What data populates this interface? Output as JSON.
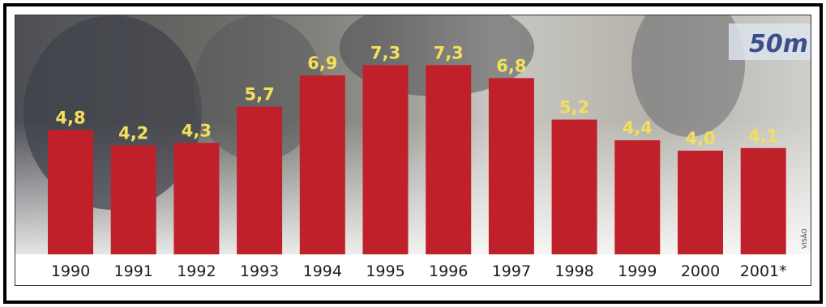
{
  "chart_data": {
    "type": "bar",
    "categories": [
      "1990",
      "1991",
      "1992",
      "1993",
      "1994",
      "1995",
      "1996",
      "1997",
      "1998",
      "1999",
      "2000",
      "2001*"
    ],
    "value_labels": [
      "4,8",
      "4,2",
      "4,3",
      "5,7",
      "6,9",
      "7,3",
      "7,3",
      "6,8",
      "5,2",
      "4,4",
      "4,0",
      "4,1"
    ],
    "values": [
      4.8,
      4.2,
      4.3,
      5.7,
      6.9,
      7.3,
      7.3,
      6.8,
      5.2,
      4.4,
      4.0,
      4.1
    ],
    "title": "",
    "xlabel": "",
    "ylabel": "",
    "ylim": [
      0,
      7.5
    ],
    "grid": false,
    "legend": "none",
    "bar_color": "#c0202a",
    "value_label_color": "#f3e05a",
    "credit": "VISÃO",
    "background_text": "50m"
  }
}
